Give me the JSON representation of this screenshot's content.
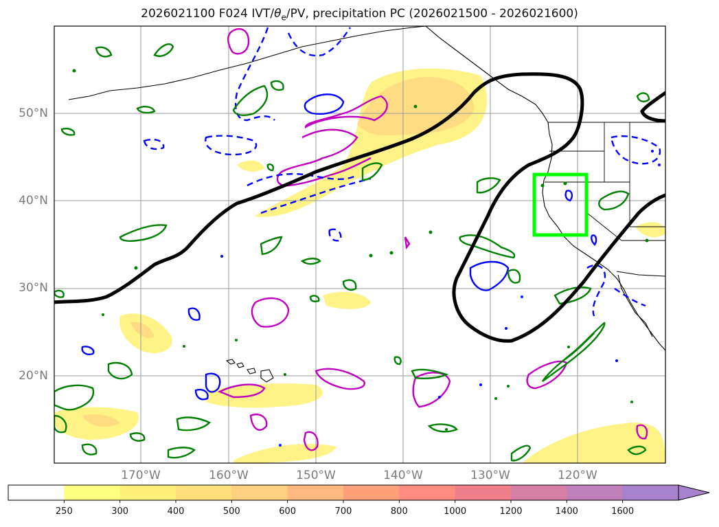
{
  "title": {
    "prefix": "2026021100 F024 IVT/",
    "theta": "θ",
    "theta_sub": "e",
    "suffix": "/PV, precipitation PC (2026021500 - 2026021600)"
  },
  "lat_labels": [
    "50°N",
    "40°N",
    "30°N",
    "20°N"
  ],
  "lon_labels": [
    "170°W",
    "160°W",
    "150°W",
    "140°W",
    "130°W",
    "120°W"
  ],
  "colorbar": {
    "labels": [
      "250",
      "300",
      "400",
      "500",
      "600",
      "700",
      "800",
      "1000",
      "1200",
      "1400",
      "1600"
    ],
    "colors": [
      "#ffffff",
      "#ffff80",
      "#fff07a",
      "#ffe07a",
      "#ffd080",
      "#ffb87e",
      "#ffa07a",
      "#ff8c80",
      "#f07f8c",
      "#d67fa4",
      "#c080bc",
      "#a882cc"
    ]
  },
  "colors": {
    "ivt_fill": "#fff27a",
    "ivt_core": "#ffc880",
    "theta_contour": "#000000",
    "positive_contour": "#008000",
    "negative_contour": "#0000ff",
    "pv_contour": "#c000c0",
    "region_box": "#00ff00"
  }
}
